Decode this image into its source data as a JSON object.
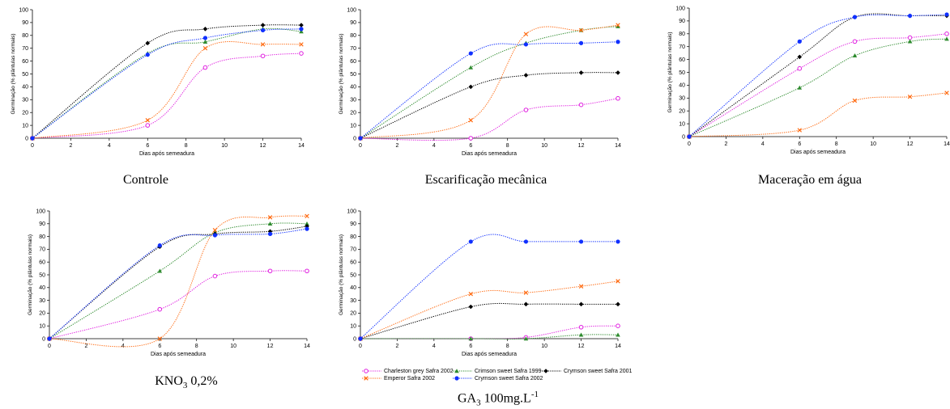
{
  "chart_data": [
    {
      "type": "line",
      "xlabel": "Dias após semeadura",
      "ylabel": "Germinação (% plântulas normais)",
      "xlim": [
        0,
        14
      ],
      "ylim": [
        0,
        100
      ],
      "xticks": [
        0,
        2,
        4,
        6,
        8,
        10,
        12,
        14
      ],
      "yticks": [
        0,
        10,
        20,
        30,
        40,
        50,
        60,
        70,
        80,
        90,
        100
      ],
      "x": [
        0,
        6,
        9,
        12,
        14
      ],
      "series": [
        {
          "name": "Charleston grey Safra 2002",
          "values": [
            0,
            10,
            55,
            64,
            66
          ]
        },
        {
          "name": "Crimson sweet Safra 1999",
          "values": [
            0,
            66,
            75,
            85,
            83
          ]
        },
        {
          "name": "Crymson sweet Safra 2001",
          "values": [
            0,
            74,
            85,
            88,
            88
          ]
        },
        {
          "name": "Emperor Safra 2002",
          "values": [
            0,
            14,
            70,
            73,
            73
          ]
        },
        {
          "name": "Crymson sweet Safra 2002",
          "values": [
            0,
            65,
            78,
            84,
            85
          ]
        }
      ]
    },
    {
      "type": "line",
      "xlabel": "Dias após semeadura",
      "ylabel": "Germinação (% plântulas normais)",
      "xlim": [
        0,
        14
      ],
      "ylim": [
        0,
        100
      ],
      "xticks": [
        0,
        2,
        4,
        6,
        8,
        10,
        12,
        14
      ],
      "yticks": [
        0,
        10,
        20,
        30,
        40,
        50,
        60,
        70,
        80,
        90,
        100
      ],
      "x": [
        0,
        6,
        9,
        12,
        14
      ],
      "series": [
        {
          "name": "Charleston grey Safra 2002",
          "values": [
            0,
            0,
            22,
            26,
            31
          ]
        },
        {
          "name": "Crimson sweet Safra 1999",
          "values": [
            0,
            55,
            74,
            84,
            87
          ]
        },
        {
          "name": "Crymson sweet Safra 2001",
          "values": [
            0,
            40,
            49,
            51,
            51
          ]
        },
        {
          "name": "Emperor Safra 2002",
          "values": [
            0,
            14,
            81,
            84,
            88
          ]
        },
        {
          "name": "Crymson sweet Safra 2002",
          "values": [
            0,
            66,
            73,
            74,
            75
          ]
        }
      ]
    },
    {
      "type": "line",
      "xlabel": "Dias após semeadura",
      "ylabel": "Germinação (% plântulas normais)",
      "xlim": [
        0,
        14
      ],
      "ylim": [
        0,
        100
      ],
      "xticks": [
        0,
        2,
        4,
        6,
        8,
        10,
        12,
        14
      ],
      "yticks": [
        0,
        10,
        20,
        30,
        40,
        50,
        60,
        70,
        80,
        90,
        100
      ],
      "x": [
        0,
        6,
        9,
        12,
        14
      ],
      "series": [
        {
          "name": "Charleston grey Safra 2002",
          "values": [
            0,
            53,
            74,
            77,
            80
          ]
        },
        {
          "name": "Crimson sweet Safra 1999",
          "values": [
            0,
            38,
            63,
            74,
            76
          ]
        },
        {
          "name": "Crymson sweet Safra 2001",
          "values": [
            0,
            62,
            93,
            94,
            94
          ]
        },
        {
          "name": "Emperor Safra 2002",
          "values": [
            0,
            5,
            28,
            31,
            34
          ]
        },
        {
          "name": "Crymson sweet Safra 2002",
          "values": [
            0,
            74,
            93,
            94,
            95
          ]
        }
      ]
    },
    {
      "type": "line",
      "xlabel": "Dias após semeadura",
      "ylabel": "Germinação (% plântulas normais)",
      "xlim": [
        0,
        14
      ],
      "ylim": [
        0,
        100
      ],
      "xticks": [
        0,
        2,
        4,
        6,
        8,
        10,
        12,
        14
      ],
      "yticks": [
        0,
        10,
        20,
        30,
        40,
        50,
        60,
        70,
        80,
        90,
        100
      ],
      "x": [
        0,
        6,
        9,
        12,
        14
      ],
      "series": [
        {
          "name": "Charleston grey Safra 2002",
          "values": [
            0,
            23,
            49,
            53,
            53
          ]
        },
        {
          "name": "Crimson sweet Safra 1999",
          "values": [
            0,
            53,
            83,
            90,
            90
          ]
        },
        {
          "name": "Crymson sweet Safra 2001",
          "values": [
            0,
            72,
            82,
            84,
            88
          ]
        },
        {
          "name": "Emperor Safra 2002",
          "values": [
            0,
            0,
            85,
            95,
            96
          ]
        },
        {
          "name": "Crymson sweet Safra 2002",
          "values": [
            0,
            73,
            81,
            82,
            86
          ]
        }
      ]
    },
    {
      "type": "line",
      "xlabel": "Dias após semeadura",
      "ylabel": "Germinação (% plântulas normais)",
      "xlim": [
        0,
        14
      ],
      "ylim": [
        0,
        100
      ],
      "xticks": [
        0,
        2,
        4,
        6,
        8,
        10,
        12,
        14
      ],
      "yticks": [
        0,
        10,
        20,
        30,
        40,
        50,
        60,
        70,
        80,
        90,
        100
      ],
      "x": [
        0,
        6,
        9,
        12,
        14
      ],
      "series": [
        {
          "name": "Charleston grey Safra 2002",
          "values": [
            0,
            0,
            1,
            9,
            10
          ]
        },
        {
          "name": "Crimson sweet Safra 1999",
          "values": [
            0,
            0,
            0,
            3,
            3
          ]
        },
        {
          "name": "Crymson sweet Safra 2001",
          "values": [
            0,
            25,
            27,
            27,
            27
          ]
        },
        {
          "name": "Emperor Safra 2002",
          "values": [
            0,
            35,
            36,
            41,
            45
          ]
        },
        {
          "name": "Crymson sweet Safra 2002",
          "values": [
            0,
            76,
            76,
            76,
            76
          ]
        }
      ]
    }
  ],
  "captions": {
    "controle": "Controle",
    "escarificacao": "Escarificação mecânica",
    "maceracao": "Maceração em água",
    "kno3_a": "KNO",
    "kno3_sub": "3",
    "kno3_b": " 0,2%",
    "ga3_a": "GA",
    "ga3_sub": "3",
    "ga3_b": " 100mg.L",
    "ga3_sup": "-1"
  },
  "legend": [
    {
      "label": "Charleston grey Safra 2002",
      "marker": "circle-open",
      "color": "#e020e0"
    },
    {
      "label": "Crimson sweet Safra 1999",
      "marker": "triangle",
      "color": "#2e8b2e"
    },
    {
      "label": "Crymson sweet Safra 2001",
      "marker": "diamond",
      "color": "#000000"
    },
    {
      "label": "Emperor Safra 2002",
      "marker": "x",
      "color": "#ff6a10"
    },
    {
      "label": "Crymson sweet Safra 2002",
      "marker": "circle",
      "color": "#1030ff"
    }
  ]
}
